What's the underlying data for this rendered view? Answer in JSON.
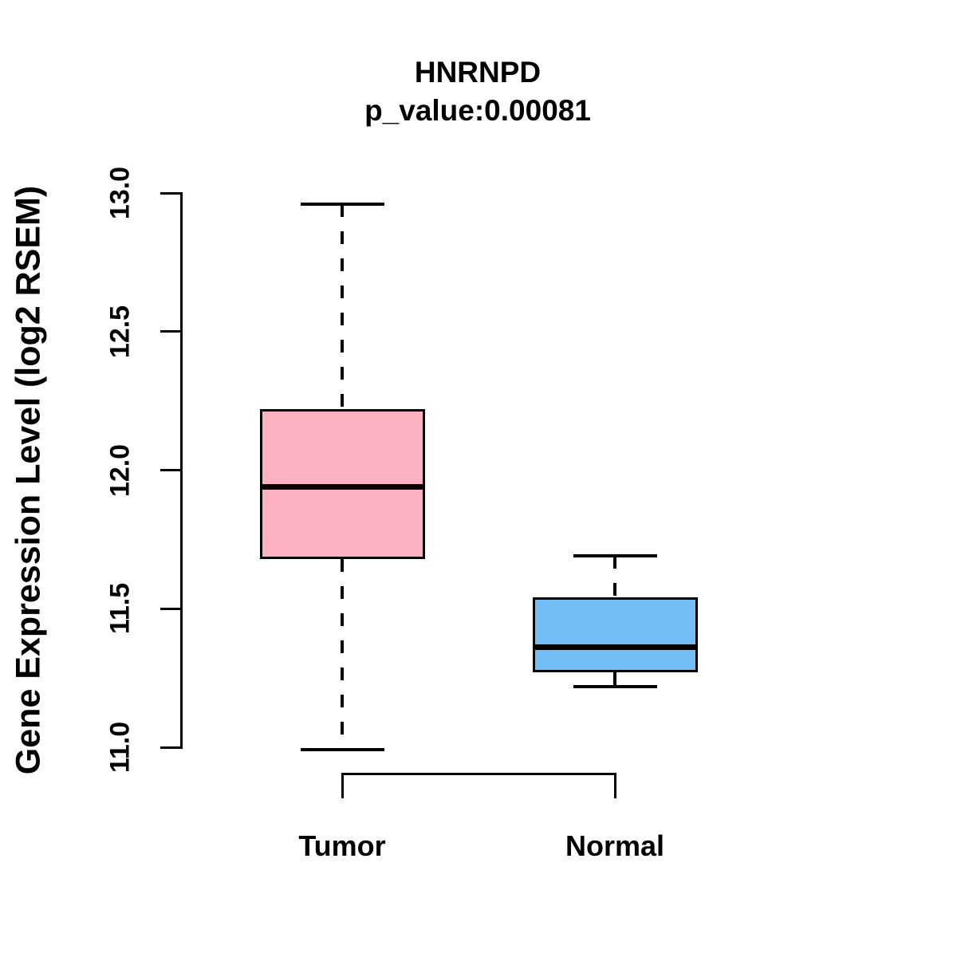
{
  "title": "HNRNPD",
  "subtitle": "p_value:0.00081",
  "y_axis_label": "Gene Expression Level (log2 RSEM)",
  "colors": {
    "background": "#FFFFFF",
    "line": "#000000",
    "tumor_fill": "#FDB1C1",
    "normal_fill": "#74BEF6"
  },
  "chart_data": {
    "type": "boxplot",
    "title": "HNRNPD",
    "subtitle": "p_value:0.00081",
    "xlabel": "",
    "ylabel": "Gene Expression Level (log2 RSEM)",
    "categories": [
      "Tumor",
      "Normal"
    ],
    "series": [
      {
        "name": "Tumor",
        "whisker_low": 10.99,
        "q1": 11.68,
        "median": 11.94,
        "q3": 12.22,
        "whisker_high": 12.96,
        "fill": "#FDB1C1"
      },
      {
        "name": "Normal",
        "whisker_low": 11.22,
        "q1": 11.27,
        "median": 11.36,
        "q3": 11.54,
        "whisker_high": 11.69,
        "fill": "#74BEF6"
      }
    ],
    "ylim": [
      11.0,
      13.0
    ],
    "yticks": [
      11.0,
      11.5,
      12.0,
      12.5,
      13.0
    ],
    "grid": false,
    "legend": null
  }
}
